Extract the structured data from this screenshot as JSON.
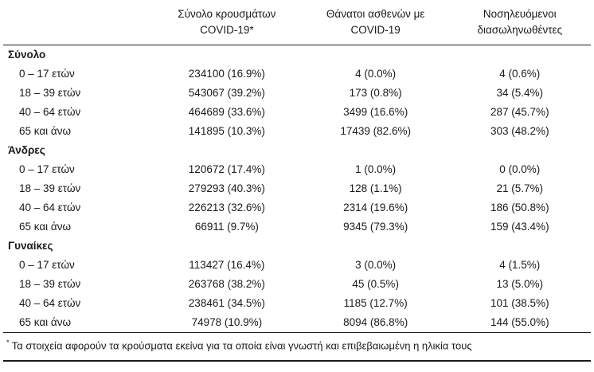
{
  "table": {
    "columns": [
      {
        "lines": [
          "Σύνολο κρουσμάτων",
          "COVID-19*"
        ]
      },
      {
        "lines": [
          "Θάνατοι ασθενών με",
          "COVID-19"
        ]
      },
      {
        "lines": [
          "Νοσηλευόμενοι",
          "διασωληνωθέντες"
        ]
      }
    ],
    "sections": [
      {
        "label": "Σύνολο",
        "rows": [
          {
            "label": "0 – 17 ετών",
            "cells": [
              "234100 (16.9%)",
              "4 (0.0%)",
              "4 (0.6%)"
            ]
          },
          {
            "label": "18 – 39 ετών",
            "cells": [
              "543067 (39.2%)",
              "173 (0.8%)",
              "34 (5.4%)"
            ]
          },
          {
            "label": "40 – 64 ετών",
            "cells": [
              "464689 (33.6%)",
              "3499 (16.6%)",
              "287 (45.7%)"
            ]
          },
          {
            "label": "65 και άνω",
            "cells": [
              "141895 (10.3%)",
              "17439 (82.6%)",
              "303 (48.2%)"
            ]
          }
        ]
      },
      {
        "label": "Άνδρες",
        "rows": [
          {
            "label": "0 – 17 ετών",
            "cells": [
              "120672 (17.4%)",
              "1 (0.0%)",
              "0 (0.0%)"
            ]
          },
          {
            "label": "18 – 39 ετών",
            "cells": [
              "279293 (40.3%)",
              "128 (1.1%)",
              "21 (5.7%)"
            ]
          },
          {
            "label": "40 – 64 ετών",
            "cells": [
              "226213 (32.6%)",
              "2314 (19.6%)",
              "186 (50.8%)"
            ]
          },
          {
            "label": "65 και άνω",
            "cells": [
              "66911 (9.7%)",
              "9345 (79.3%)",
              "159 (43.4%)"
            ]
          }
        ]
      },
      {
        "label": "Γυναίκες",
        "rows": [
          {
            "label": "0 – 17 ετών",
            "cells": [
              "113427 (16.4%)",
              "3 (0.0%)",
              "4 (1.5%)"
            ]
          },
          {
            "label": "18 – 39 ετών",
            "cells": [
              "263768 (38.2%)",
              "45 (0.5%)",
              "13 (5.0%)"
            ]
          },
          {
            "label": "40 – 64 ετών",
            "cells": [
              "238461 (34.5%)",
              "1185 (12.7%)",
              "101 (38.5%)"
            ]
          },
          {
            "label": "65 και άνω",
            "cells": [
              "74978 (10.9%)",
              "8094 (86.8%)",
              "144 (55.0%)"
            ]
          }
        ]
      }
    ],
    "footnote_marker": "*",
    "footnote": "Τα στοιχεία αφορούν τα κρούσματα εκείνα για τα οποία είναι γνωστή και επιβεβαιωμένη η ηλικία τους"
  }
}
